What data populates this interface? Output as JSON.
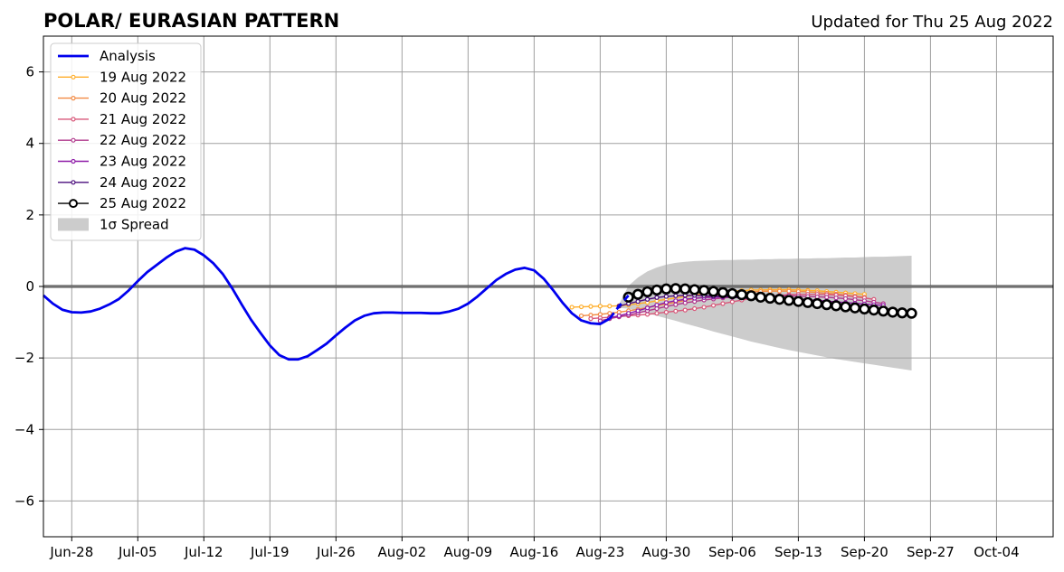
{
  "chart_data": {
    "type": "line",
    "title": "POLAR/ EURASIAN  PATTERN",
    "subtitle": "Updated for Thu 25 Aug 2022",
    "xlabel": "",
    "ylabel": "",
    "ylim": [
      -7,
      7
    ],
    "xlim": [
      "2022-06-25",
      "2022-10-10"
    ],
    "grid": true,
    "legend_position": "top-left",
    "yticks": [
      6,
      4,
      2,
      0,
      -2,
      -4,
      -6
    ],
    "ytick_labels": [
      "6",
      "4",
      "2",
      "0",
      "−2",
      "−4",
      "−6"
    ],
    "xticks": [
      {
        "date": "2022-06-28",
        "label": "Jun-28"
      },
      {
        "date": "2022-07-05",
        "label": "Jul-05"
      },
      {
        "date": "2022-07-12",
        "label": "Jul-12"
      },
      {
        "date": "2022-07-19",
        "label": "Jul-19"
      },
      {
        "date": "2022-07-26",
        "label": "Jul-26"
      },
      {
        "date": "2022-08-02",
        "label": "Aug-02"
      },
      {
        "date": "2022-08-09",
        "label": "Aug-09"
      },
      {
        "date": "2022-08-16",
        "label": "Aug-16"
      },
      {
        "date": "2022-08-23",
        "label": "Aug-23"
      },
      {
        "date": "2022-08-30",
        "label": "Aug-30"
      },
      {
        "date": "2022-09-06",
        "label": "Sep-06"
      },
      {
        "date": "2022-09-13",
        "label": "Sep-13"
      },
      {
        "date": "2022-09-20",
        "label": "Sep-20"
      },
      {
        "date": "2022-09-27",
        "label": "Sep-27"
      },
      {
        "date": "2022-10-04",
        "label": "Oct-04"
      }
    ],
    "analysis": {
      "name": "Analysis",
      "color": "#0000ee",
      "points": [
        [
          "2022-06-25",
          -0.25
        ],
        [
          "2022-06-26",
          -0.48
        ],
        [
          "2022-06-27",
          -0.65
        ],
        [
          "2022-06-28",
          -0.72
        ],
        [
          "2022-06-29",
          -0.73
        ],
        [
          "2022-06-30",
          -0.7
        ],
        [
          "2022-07-01",
          -0.62
        ],
        [
          "2022-07-02",
          -0.5
        ],
        [
          "2022-07-03",
          -0.35
        ],
        [
          "2022-07-04",
          -0.12
        ],
        [
          "2022-07-05",
          0.15
        ],
        [
          "2022-07-06",
          0.4
        ],
        [
          "2022-07-07",
          0.6
        ],
        [
          "2022-07-08",
          0.8
        ],
        [
          "2022-07-09",
          0.97
        ],
        [
          "2022-07-10",
          1.07
        ],
        [
          "2022-07-11",
          1.03
        ],
        [
          "2022-07-12",
          0.87
        ],
        [
          "2022-07-13",
          0.65
        ],
        [
          "2022-07-14",
          0.35
        ],
        [
          "2022-07-15",
          -0.05
        ],
        [
          "2022-07-16",
          -0.5
        ],
        [
          "2022-07-17",
          -0.93
        ],
        [
          "2022-07-18",
          -1.3
        ],
        [
          "2022-07-19",
          -1.65
        ],
        [
          "2022-07-20",
          -1.92
        ],
        [
          "2022-07-21",
          -2.04
        ],
        [
          "2022-07-22",
          -2.04
        ],
        [
          "2022-07-23",
          -1.95
        ],
        [
          "2022-07-24",
          -1.78
        ],
        [
          "2022-07-25",
          -1.6
        ],
        [
          "2022-07-26",
          -1.37
        ],
        [
          "2022-07-27",
          -1.15
        ],
        [
          "2022-07-28",
          -0.95
        ],
        [
          "2022-07-29",
          -0.82
        ],
        [
          "2022-07-30",
          -0.75
        ],
        [
          "2022-07-31",
          -0.73
        ],
        [
          "2022-08-01",
          -0.73
        ],
        [
          "2022-08-02",
          -0.74
        ],
        [
          "2022-08-03",
          -0.74
        ],
        [
          "2022-08-04",
          -0.74
        ],
        [
          "2022-08-05",
          -0.75
        ],
        [
          "2022-08-06",
          -0.75
        ],
        [
          "2022-08-07",
          -0.7
        ],
        [
          "2022-08-08",
          -0.62
        ],
        [
          "2022-08-09",
          -0.48
        ],
        [
          "2022-08-10",
          -0.28
        ],
        [
          "2022-08-11",
          -0.05
        ],
        [
          "2022-08-12",
          0.18
        ],
        [
          "2022-08-13",
          0.35
        ],
        [
          "2022-08-14",
          0.47
        ],
        [
          "2022-08-15",
          0.52
        ],
        [
          "2022-08-16",
          0.45
        ],
        [
          "2022-08-17",
          0.22
        ],
        [
          "2022-08-18",
          -0.1
        ],
        [
          "2022-08-19",
          -0.45
        ],
        [
          "2022-08-20",
          -0.75
        ],
        [
          "2022-08-21",
          -0.95
        ],
        [
          "2022-08-22",
          -1.03
        ],
        [
          "2022-08-23",
          -1.05
        ],
        [
          "2022-08-24",
          -0.9
        ]
      ],
      "dashed_points": [
        [
          "2022-08-24",
          -0.9
        ],
        [
          "2022-08-25",
          -0.55
        ],
        [
          "2022-08-26",
          -0.25
        ]
      ]
    },
    "series": [
      {
        "name": "19 Aug 2022",
        "color": "#ffae2a",
        "start": "2022-08-20",
        "values": [
          -0.58,
          -0.57,
          -0.56,
          -0.55,
          -0.55,
          -0.54,
          -0.52,
          -0.48,
          -0.45,
          -0.4,
          -0.36,
          -0.32,
          -0.28,
          -0.24,
          -0.2,
          -0.17,
          -0.15,
          -0.13,
          -0.12,
          -0.1,
          -0.1,
          -0.09,
          -0.09,
          -0.09,
          -0.1,
          -0.11,
          -0.12,
          -0.14,
          -0.16,
          -0.18,
          -0.2,
          -0.22
        ]
      },
      {
        "name": "20 Aug 2022",
        "color": "#f28a43",
        "start": "2022-08-21",
        "values": [
          -0.82,
          -0.8,
          -0.78,
          -0.75,
          -0.72,
          -0.68,
          -0.64,
          -0.59,
          -0.54,
          -0.49,
          -0.44,
          -0.39,
          -0.34,
          -0.3,
          -0.26,
          -0.22,
          -0.19,
          -0.17,
          -0.15,
          -0.14,
          -0.13,
          -0.13,
          -0.13,
          -0.14,
          -0.15,
          -0.17,
          -0.19,
          -0.21,
          -0.24,
          -0.27,
          -0.3
        ]
      },
      {
        "name": "21 Aug 2022",
        "color": "#d8587a",
        "start": "2022-08-22",
        "values": [
          -0.9,
          -0.88,
          -0.86,
          -0.84,
          -0.82,
          -0.8,
          -0.78,
          -0.75,
          -0.72,
          -0.69,
          -0.66,
          -0.62,
          -0.58,
          -0.53,
          -0.48,
          -0.43,
          -0.38,
          -0.34,
          -0.3,
          -0.27,
          -0.25,
          -0.23,
          -0.22,
          -0.22,
          -0.22,
          -0.23,
          -0.24,
          -0.26,
          -0.29,
          -0.32,
          -0.36
        ]
      },
      {
        "name": "22 Aug 2022",
        "color": "#b1388c",
        "start": "2022-08-23",
        "values": [
          -0.96,
          -0.9,
          -0.85,
          -0.8,
          -0.74,
          -0.68,
          -0.62,
          -0.56,
          -0.51,
          -0.46,
          -0.42,
          -0.38,
          -0.35,
          -0.32,
          -0.3,
          -0.28,
          -0.27,
          -0.26,
          -0.26,
          -0.26,
          -0.26,
          -0.27,
          -0.28,
          -0.29,
          -0.3,
          -0.32,
          -0.34,
          -0.37,
          -0.4,
          -0.44,
          -0.48
        ]
      },
      {
        "name": "23 Aug 2022",
        "color": "#8e1ba8",
        "start": "2022-08-24",
        "values": [
          -0.88,
          -0.82,
          -0.75,
          -0.68,
          -0.6,
          -0.52,
          -0.45,
          -0.4,
          -0.36,
          -0.33,
          -0.31,
          -0.3,
          -0.29,
          -0.29,
          -0.29,
          -0.3,
          -0.31,
          -0.32,
          -0.33,
          -0.34,
          -0.35,
          -0.37,
          -0.39,
          -0.41,
          -0.43,
          -0.45,
          -0.47,
          -0.49,
          -0.51,
          -0.53
        ]
      },
      {
        "name": "24 Aug 2022",
        "color": "#4a0c7c",
        "start": "2022-08-25",
        "values": [
          -0.55,
          -0.48,
          -0.42,
          -0.36,
          -0.31,
          -0.28,
          -0.26,
          -0.25,
          -0.25,
          -0.26,
          -0.27,
          -0.28,
          -0.3,
          -0.32,
          -0.34,
          -0.36,
          -0.38,
          -0.4,
          -0.42,
          -0.44,
          -0.46,
          -0.48,
          -0.5,
          -0.52,
          -0.54,
          -0.56,
          -0.58,
          -0.6,
          -0.62,
          -0.64
        ]
      },
      {
        "name": "25 Aug 2022",
        "color": "#000000",
        "start": "2022-08-26",
        "values": [
          -0.3,
          -0.22,
          -0.15,
          -0.1,
          -0.07,
          -0.06,
          -0.07,
          -0.09,
          -0.11,
          -0.14,
          -0.17,
          -0.2,
          -0.23,
          -0.26,
          -0.3,
          -0.33,
          -0.36,
          -0.39,
          -0.42,
          -0.45,
          -0.48,
          -0.51,
          -0.54,
          -0.57,
          -0.6,
          -0.63,
          -0.66,
          -0.69,
          -0.72,
          -0.74,
          -0.75
        ]
      }
    ],
    "spread": {
      "name": "1σ Spread",
      "color": "#cccccc",
      "start": "2022-08-25",
      "upper": [
        -0.5,
        0.02,
        0.25,
        0.42,
        0.53,
        0.61,
        0.66,
        0.69,
        0.71,
        0.72,
        0.73,
        0.74,
        0.74,
        0.75,
        0.75,
        0.76,
        0.76,
        0.77,
        0.77,
        0.78,
        0.78,
        0.79,
        0.79,
        0.8,
        0.81,
        0.81,
        0.82,
        0.83,
        0.83,
        0.84,
        0.85,
        0.86
      ],
      "lower": [
        -0.6,
        -0.62,
        -0.68,
        -0.75,
        -0.82,
        -0.89,
        -0.96,
        -1.04,
        -1.11,
        -1.18,
        -1.26,
        -1.33,
        -1.4,
        -1.47,
        -1.54,
        -1.6,
        -1.66,
        -1.72,
        -1.78,
        -1.83,
        -1.88,
        -1.93,
        -1.98,
        -2.03,
        -2.07,
        -2.11,
        -2.15,
        -2.19,
        -2.23,
        -2.27,
        -2.31,
        -2.35
      ]
    }
  }
}
